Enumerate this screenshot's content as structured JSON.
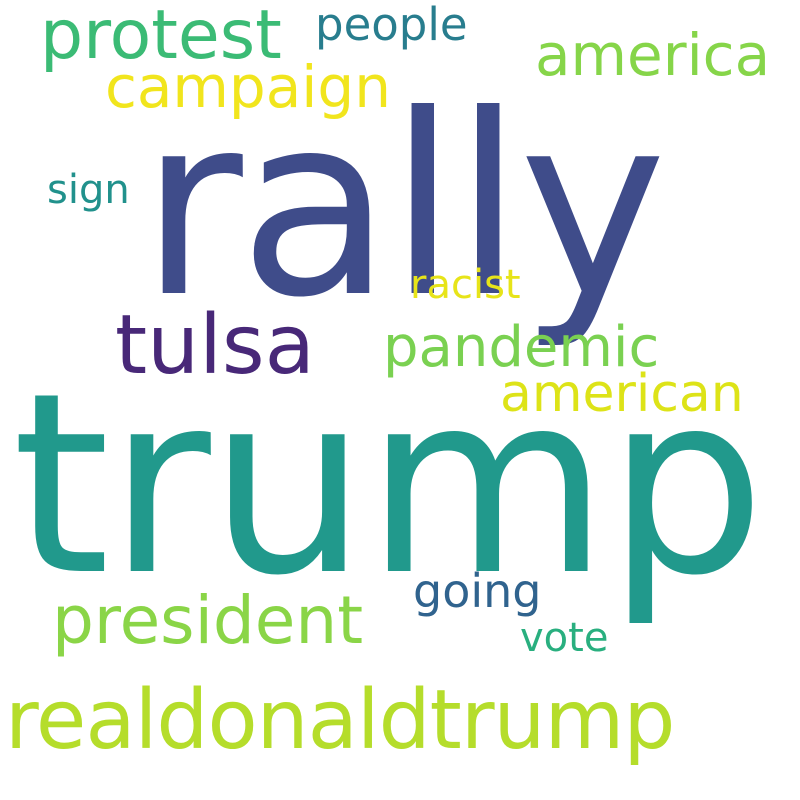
{
  "word_cloud": {
    "background": "#ffffff",
    "words": [
      {
        "id": "trump",
        "text": "trump",
        "color": "#21998c"
      },
      {
        "id": "rally",
        "text": "rally",
        "color": "#3f4c8a"
      },
      {
        "id": "realdonaldtrump",
        "text": "realdonaldtrump",
        "color": "#b5dd2b"
      },
      {
        "id": "tulsa",
        "text": "tulsa",
        "color": "#482878"
      },
      {
        "id": "protest",
        "text": "protest",
        "color": "#3bbb75"
      },
      {
        "id": "president",
        "text": "president",
        "color": "#8ad547"
      },
      {
        "id": "america",
        "text": "america",
        "color": "#86d549"
      },
      {
        "id": "campaign",
        "text": "campaign",
        "color": "#f1e51d"
      },
      {
        "id": "pandemic",
        "text": "pandemic",
        "color": "#7ad151"
      },
      {
        "id": "american",
        "text": "american",
        "color": "#dde318"
      },
      {
        "id": "people",
        "text": "people",
        "color": "#287d8e"
      },
      {
        "id": "going",
        "text": "going",
        "color": "#30638e"
      },
      {
        "id": "sign",
        "text": "sign",
        "color": "#21918c"
      },
      {
        "id": "racist",
        "text": "racist",
        "color": "#e7e419"
      },
      {
        "id": "vote",
        "text": "vote",
        "color": "#29af7f"
      }
    ]
  }
}
